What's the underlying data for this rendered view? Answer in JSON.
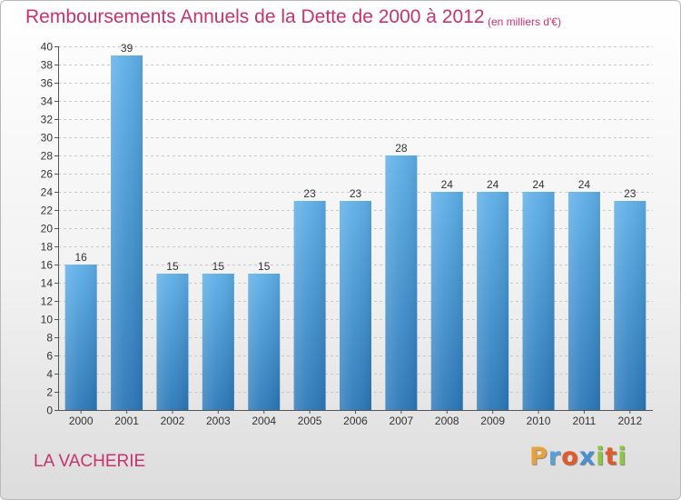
{
  "title": "Remboursements Annuels de la Dette de 2000 à 2012",
  "subtitle": "(en milliers d'€)",
  "commune": "LA VACHERIE",
  "logo": {
    "text": "Proxiti",
    "letters": [
      {
        "ch": "P",
        "color": "#e8a23c"
      },
      {
        "ch": "r",
        "color": "#5aa0d8"
      },
      {
        "ch": "o",
        "color": "#e05a2a"
      },
      {
        "ch": "x",
        "color": "#4a8fd0"
      },
      {
        "ch": "i",
        "color": "#8cc63f"
      },
      {
        "ch": "t",
        "color": "#e05a2a"
      },
      {
        "ch": "i",
        "color": "#8cc63f"
      }
    ]
  },
  "colors": {
    "title": "#c8326e",
    "bar_top": "#5daee8",
    "bar_bottom": "#2b78b8",
    "grid": "#c8c8c8",
    "axis": "#555555"
  },
  "chart_data": {
    "type": "bar",
    "categories": [
      "2000",
      "2001",
      "2002",
      "2003",
      "2004",
      "2005",
      "2006",
      "2007",
      "2008",
      "2009",
      "2010",
      "2011",
      "2012"
    ],
    "values": [
      16,
      39,
      15,
      15,
      15,
      23,
      23,
      28,
      24,
      24,
      24,
      24,
      23
    ],
    "title": "Remboursements Annuels de la Dette de 2000 à 2012",
    "xlabel": "",
    "ylabel": "",
    "ylim": [
      0,
      40
    ],
    "yticks": [
      0,
      2,
      4,
      6,
      8,
      10,
      12,
      14,
      16,
      18,
      20,
      22,
      24,
      26,
      28,
      30,
      32,
      34,
      36,
      38,
      40
    ],
    "grid": true,
    "grid_style": "dashed-horizontal",
    "legend": "none",
    "data_labels": true
  }
}
